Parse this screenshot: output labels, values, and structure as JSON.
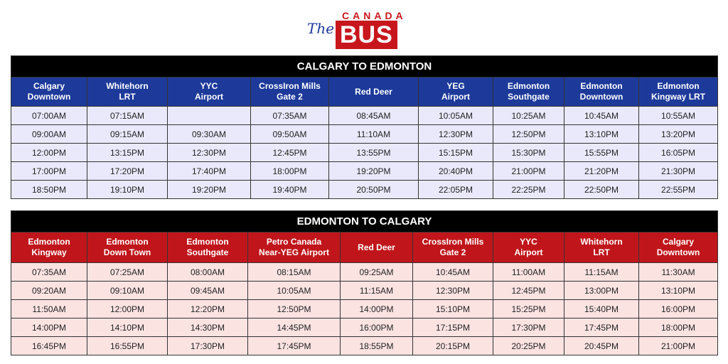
{
  "logo": {
    "the": "The",
    "canada": "CANADA",
    "bus": "BUS"
  },
  "colors": {
    "blue_header": "#1d3a9a",
    "red_header": "#c0161b",
    "title_bar": "#000000",
    "blue_row": "#e9e9fb",
    "red_row": "#fbe3e2"
  },
  "tables": [
    {
      "title": "CALGARY TO EDMONTON",
      "headers": [
        "Calgary\nDowntown",
        "Whitehorn\nLRT",
        "YYC\nAirport",
        "CrossIron Mills\nGate 2",
        "Red Deer",
        "YEG\nAirport",
        "Edmonton\nSouthgate",
        "Edmonton\nDowntown",
        "Edmonton\nKingway LRT"
      ],
      "rows": [
        [
          "07:00AM",
          "07:15AM",
          "",
          "07:35AM",
          "08:45AM",
          "10:05AM",
          "10:25AM",
          "10:45AM",
          "10:55AM"
        ],
        [
          "09:00AM",
          "09:15AM",
          "09:30AM",
          "09:50AM",
          "11:10AM",
          "12:30PM",
          "12:50PM",
          "13:10PM",
          "13:20PM"
        ],
        [
          "12:00PM",
          "13:15PM",
          "12:30PM",
          "12:45PM",
          "13:55PM",
          "15:15PM",
          "15:30PM",
          "15:55PM",
          "16:05PM"
        ],
        [
          "17:00PM",
          "17:20PM",
          "17:40PM",
          "18:00PM",
          "19:20PM",
          "20:40PM",
          "21:00PM",
          "21:20PM",
          "21:30PM"
        ],
        [
          "18:50PM",
          "19:10PM",
          "19:20PM",
          "19:40PM",
          "20:50PM",
          "22:05PM",
          "22:25PM",
          "22:50PM",
          "22:55PM"
        ]
      ]
    },
    {
      "title": "EDMONTON TO CALGARY",
      "headers": [
        "Edmonton\nKingway",
        "Edmonton\nDown Town",
        "Edmonton\nSouthgate",
        "Petro Canada\nNear-YEG Airport",
        "Red Deer",
        "CrossIron Mills\nGate 2",
        "YYC\nAirport",
        "Whitehorn\nLRT",
        "Calgary\nDowntown"
      ],
      "rows": [
        [
          "07:35AM",
          "07:25AM",
          "08:00AM",
          "08:15AM",
          "09:25AM",
          "10:45AM",
          "11:00AM",
          "11:15AM",
          "11:30AM"
        ],
        [
          "09:20AM",
          "09:10AM",
          "09:45AM",
          "10:05AM",
          "11:15AM",
          "12:30PM",
          "12:45PM",
          "13:00PM",
          "13:10PM"
        ],
        [
          "11:50AM",
          "12:00PM",
          "12:20PM",
          "12:50PM",
          "14:00PM",
          "15:10PM",
          "15:25PM",
          "15:40PM",
          "16:00PM"
        ],
        [
          "14:00PM",
          "14:10PM",
          "14:30PM",
          "14:45PM",
          "16:00PM",
          "17:15PM",
          "17:30PM",
          "17:45PM",
          "18:00PM"
        ],
        [
          "16:45PM",
          "16:55PM",
          "17:30PM",
          "17:45PM",
          "18:55PM",
          "20:15PM",
          "20:25PM",
          "20:45PM",
          "21:00PM"
        ]
      ]
    }
  ]
}
